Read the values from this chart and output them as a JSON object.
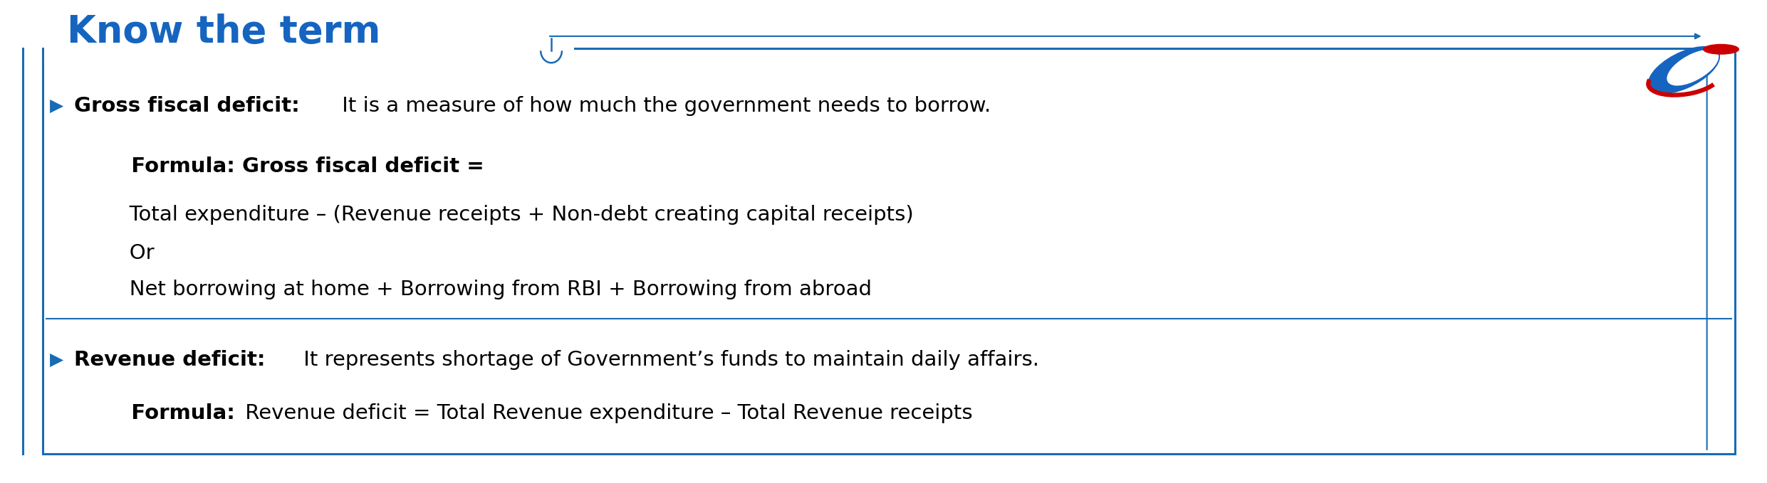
{
  "title": "Know the term",
  "title_color": "#1565C0",
  "title_fontsize": 38,
  "bg_color": "#ffffff",
  "border_color": "#1A6BB5",
  "arrow_color": "#1A6BB5",
  "line1_bold": "Gross fiscal deficit:",
  "line1_normal": " It is a measure of how much the government needs to borrow.",
  "line2_bold": "   Formula: Gross fiscal deficit =",
  "line3": "   Total expenditure – (Revenue receipts + Non-debt creating capital receipts)",
  "line4": "   Or",
  "line5": "   Net borrowing at home + Borrowing from RBI + Borrowing from abroad",
  "line6_bold": "Revenue deficit:",
  "line6_normal": " It represents shortage of Government’s funds to maintain daily affairs.",
  "line7_bold": "   Formula:",
  "line7_normal": " Revenue deficit = Total Revenue expenditure – Total Revenue receipts",
  "bullet_color": "#1A6BB5",
  "text_color": "#000000",
  "font_size": 21,
  "bold_size": 21,
  "logo_blue": "#1565C0",
  "logo_red": "#cc0000"
}
